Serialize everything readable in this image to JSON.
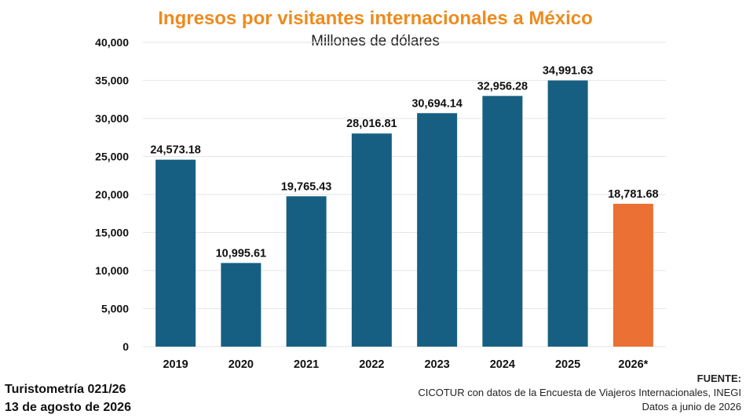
{
  "colors": {
    "title": "#ED8B1E",
    "bar": "#175F82",
    "highlight_bar": "#EA7034",
    "grid": "#e6e6e6"
  },
  "chart_data": {
    "type": "bar",
    "title": "Ingresos por visitantes internacionales a México",
    "subtitle": "Millones de dólares",
    "categories": [
      "2019",
      "2020",
      "2021",
      "2022",
      "2023",
      "2024",
      "2025",
      "2026*"
    ],
    "values": [
      24573.18,
      10995.61,
      19765.43,
      28016.81,
      30694.14,
      32956.28,
      34991.63,
      18781.68
    ],
    "value_labels": [
      "24,573.18",
      "10,995.61",
      "19,765.43",
      "28,016.81",
      "30,694.14",
      "32,956.28",
      "34,991.63",
      "18,781.68"
    ],
    "highlight_index": 7,
    "ylim": [
      0,
      40000
    ],
    "yticks": [
      0,
      5000,
      10000,
      15000,
      20000,
      25000,
      30000,
      35000,
      40000
    ],
    "ytick_labels": [
      "0",
      "5,000",
      "10,000",
      "15,000",
      "20,000",
      "25,000",
      "30,000",
      "35,000",
      "40,000"
    ],
    "grid": true,
    "legend": "none"
  },
  "footer": {
    "report": "Turistometría 021/26",
    "date": "13 de agosto de 2026",
    "source_label": "FUENTE:",
    "source_text": "CICOTUR con datos de la Encuesta de Viajeros Internacionales, INEGI",
    "data_note": "Datos a junio de 2026"
  }
}
